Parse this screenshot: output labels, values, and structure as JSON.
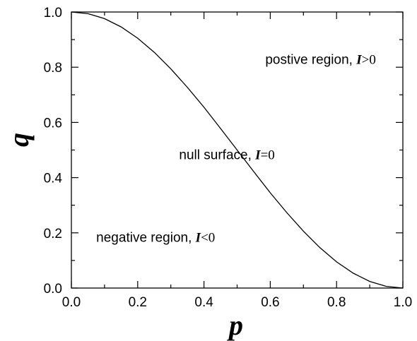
{
  "chart_data": {
    "type": "line",
    "title": "",
    "xlabel": "p",
    "ylabel": "q",
    "xlim": [
      0.0,
      1.0
    ],
    "ylim": [
      0.0,
      1.0
    ],
    "grid": false,
    "x_ticks": [
      "0.0",
      "0.2",
      "0.4",
      "0.6",
      "0.8",
      "1.0"
    ],
    "y_ticks": [
      "0.0",
      "0.2",
      "0.4",
      "0.6",
      "0.8",
      "1.0"
    ],
    "series": [
      {
        "x": [
          0.0,
          0.05,
          0.1,
          0.15,
          0.2,
          0.25,
          0.3,
          0.35,
          0.4,
          0.45,
          0.5,
          0.55,
          0.6,
          0.65,
          0.7,
          0.75,
          0.8,
          0.85,
          0.9,
          0.95,
          1.0
        ],
        "y": [
          1.0,
          0.994,
          0.976,
          0.946,
          0.905,
          0.854,
          0.794,
          0.727,
          0.655,
          0.578,
          0.5,
          0.422,
          0.345,
          0.273,
          0.206,
          0.146,
          0.095,
          0.054,
          0.024,
          0.006,
          0.0
        ]
      }
    ],
    "annotations": [
      {
        "text": "postive region, ",
        "symbol": "I",
        "op": ">",
        "val": "0",
        "x": 0.585,
        "y": 0.83
      },
      {
        "text": "null surface, ",
        "symbol": "I",
        "op": "=",
        "val": "0",
        "x": 0.325,
        "y": 0.485
      },
      {
        "text": "negative region, ",
        "symbol": "I",
        "op": "<",
        "val": "0",
        "x": 0.075,
        "y": 0.185
      }
    ]
  }
}
